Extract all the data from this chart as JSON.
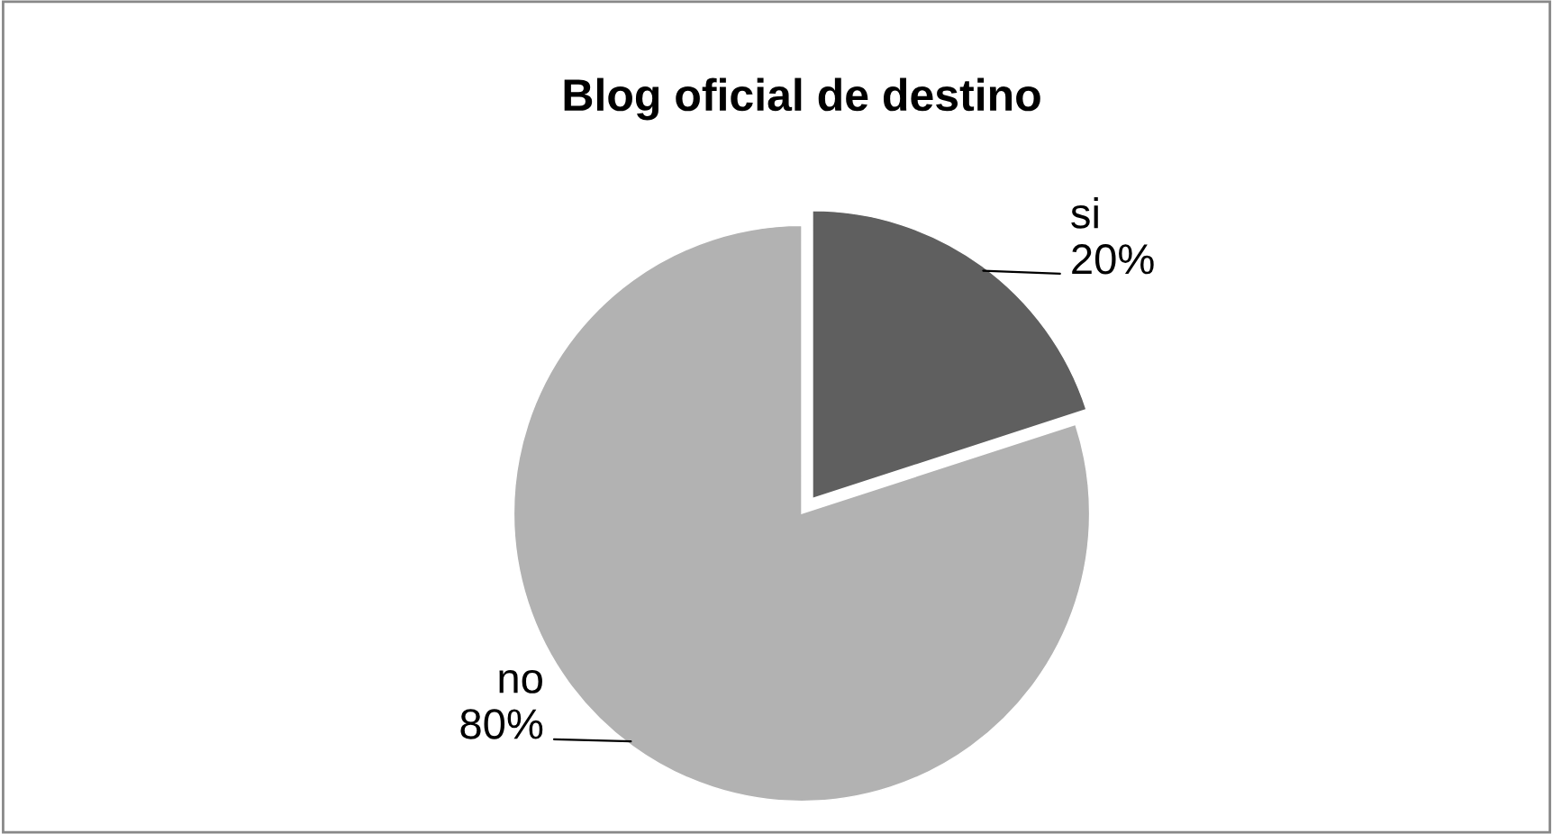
{
  "chart_data": {
    "type": "pie",
    "title": "Blog oficial de destino",
    "categories": [
      "si",
      "no"
    ],
    "values": [
      20,
      80
    ],
    "value_labels": [
      "20%",
      "80%"
    ],
    "colors": [
      "#5f5f5f",
      "#b2b2b2"
    ],
    "legend": false
  }
}
